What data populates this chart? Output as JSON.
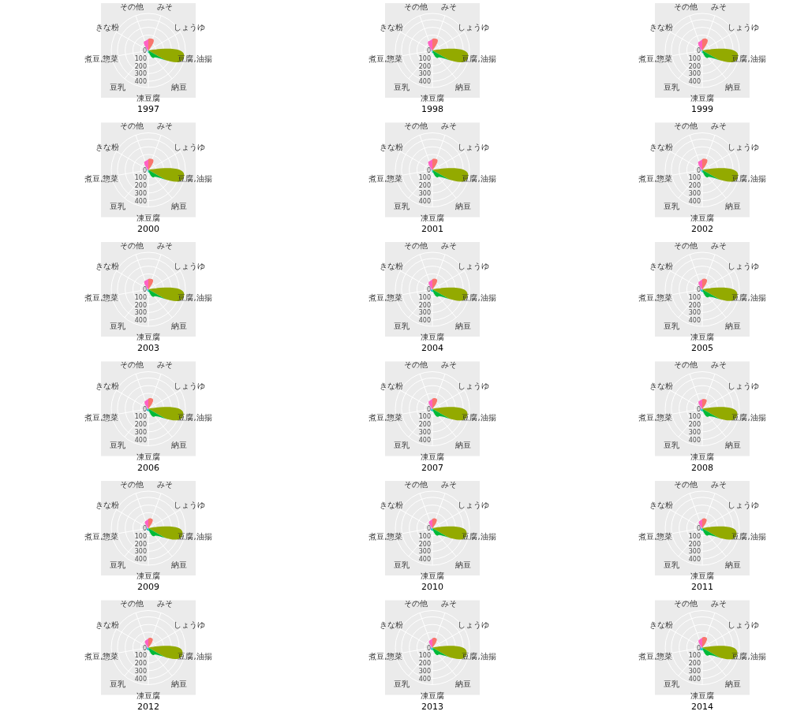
{
  "chart_data": [
    {
      "type": "radar",
      "title": "1997",
      "categories": [
        "みそ",
        "しょうゆ",
        "豆腐,油揚",
        "納豆",
        "凍豆腐",
        "豆乳",
        "煮豆,惣菜",
        "きな粉",
        "その他"
      ],
      "colors": [
        "#F8766D",
        "#D39200",
        "#93AA00",
        "#00BA38",
        "#00C19F",
        "#00B9E3",
        "#619CFF",
        "#DB72FB",
        "#FF61C3"
      ],
      "ylim": [
        0,
        480
      ],
      "yticks": [
        0,
        100,
        200,
        300,
        400
      ],
      "grid": true,
      "values": [
        160,
        10,
        470,
        120,
        30,
        10,
        20,
        20,
        130
      ]
    },
    {
      "type": "radar",
      "title": "1998",
      "categories": [
        "みそ",
        "しょうゆ",
        "豆腐,油揚",
        "納豆",
        "凍豆腐",
        "豆乳",
        "煮豆,惣菜",
        "きな粉",
        "その他"
      ],
      "colors": [
        "#F8766D",
        "#D39200",
        "#93AA00",
        "#00BA38",
        "#00C19F",
        "#00B9E3",
        "#619CFF",
        "#DB72FB",
        "#FF61C3"
      ],
      "ylim": [
        0,
        480
      ],
      "yticks": [
        0,
        100,
        200,
        300,
        400
      ],
      "grid": true,
      "values": [
        160,
        10,
        470,
        120,
        30,
        10,
        20,
        20,
        130
      ]
    },
    {
      "type": "radar",
      "title": "1999",
      "categories": [
        "みそ",
        "しょうゆ",
        "豆腐,油揚",
        "納豆",
        "凍豆腐",
        "豆乳",
        "煮豆,惣菜",
        "きな粉",
        "その他"
      ],
      "colors": [
        "#F8766D",
        "#D39200",
        "#93AA00",
        "#00BA38",
        "#00C19F",
        "#00B9E3",
        "#619CFF",
        "#DB72FB",
        "#FF61C3"
      ],
      "ylim": [
        0,
        480
      ],
      "yticks": [
        0,
        100,
        200,
        300,
        400
      ],
      "grid": true,
      "values": [
        160,
        10,
        470,
        120,
        30,
        10,
        20,
        20,
        120
      ]
    },
    {
      "type": "radar",
      "title": "2000",
      "categories": [
        "みそ",
        "しょうゆ",
        "豆腐,油揚",
        "納豆",
        "凍豆腐",
        "豆乳",
        "煮豆,惣菜",
        "きな粉",
        "その他"
      ],
      "colors": [
        "#F8766D",
        "#D39200",
        "#93AA00",
        "#00BA38",
        "#00C19F",
        "#00B9E3",
        "#619CFF",
        "#DB72FB",
        "#FF61C3"
      ],
      "ylim": [
        0,
        480
      ],
      "yticks": [
        0,
        100,
        200,
        300,
        400
      ],
      "grid": true,
      "values": [
        150,
        10,
        470,
        120,
        30,
        10,
        20,
        20,
        120
      ]
    },
    {
      "type": "radar",
      "title": "2001",
      "categories": [
        "みそ",
        "しょうゆ",
        "豆腐,油揚",
        "納豆",
        "凍豆腐",
        "豆乳",
        "煮豆,惣菜",
        "きな粉",
        "その他"
      ],
      "colors": [
        "#F8766D",
        "#D39200",
        "#93AA00",
        "#00BA38",
        "#00C19F",
        "#00B9E3",
        "#619CFF",
        "#DB72FB",
        "#FF61C3"
      ],
      "ylim": [
        0,
        480
      ],
      "yticks": [
        0,
        100,
        200,
        300,
        400
      ],
      "grid": true,
      "values": [
        150,
        10,
        470,
        120,
        30,
        10,
        20,
        20,
        120
      ]
    },
    {
      "type": "radar",
      "title": "2002",
      "categories": [
        "みそ",
        "しょうゆ",
        "豆腐,油揚",
        "納豆",
        "凍豆腐",
        "豆乳",
        "煮豆,惣菜",
        "きな粉",
        "その他"
      ],
      "colors": [
        "#F8766D",
        "#D39200",
        "#93AA00",
        "#00BA38",
        "#00C19F",
        "#00B9E3",
        "#619CFF",
        "#DB72FB",
        "#FF61C3"
      ],
      "ylim": [
        0,
        480
      ],
      "yticks": [
        0,
        100,
        200,
        300,
        400
      ],
      "grid": true,
      "values": [
        150,
        10,
        470,
        120,
        30,
        20,
        20,
        20,
        120
      ]
    },
    {
      "type": "radar",
      "title": "2003",
      "categories": [
        "みそ",
        "しょうゆ",
        "豆腐,油揚",
        "納豆",
        "凍豆腐",
        "豆乳",
        "煮豆,惣菜",
        "きな粉",
        "その他"
      ],
      "colors": [
        "#F8766D",
        "#D39200",
        "#93AA00",
        "#00BA38",
        "#00C19F",
        "#00B9E3",
        "#619CFF",
        "#DB72FB",
        "#FF61C3"
      ],
      "ylim": [
        0,
        480
      ],
      "yticks": [
        0,
        100,
        200,
        300,
        400
      ],
      "grid": true,
      "values": [
        140,
        10,
        470,
        120,
        30,
        20,
        20,
        20,
        120
      ]
    },
    {
      "type": "radar",
      "title": "2004",
      "categories": [
        "みそ",
        "しょうゆ",
        "豆腐,油揚",
        "納豆",
        "凍豆腐",
        "豆乳",
        "煮豆,惣菜",
        "きな粉",
        "その他"
      ],
      "colors": [
        "#F8766D",
        "#D39200",
        "#93AA00",
        "#00BA38",
        "#00C19F",
        "#00B9E3",
        "#619CFF",
        "#DB72FB",
        "#FF61C3"
      ],
      "ylim": [
        0,
        480
      ],
      "yticks": [
        0,
        100,
        200,
        300,
        400
      ],
      "grid": true,
      "values": [
        140,
        10,
        460,
        120,
        30,
        30,
        20,
        20,
        110
      ]
    },
    {
      "type": "radar",
      "title": "2005",
      "categories": [
        "みそ",
        "しょうゆ",
        "豆腐,油揚",
        "納豆",
        "凍豆腐",
        "豆乳",
        "煮豆,惣菜",
        "きな粉",
        "その他"
      ],
      "colors": [
        "#F8766D",
        "#D39200",
        "#93AA00",
        "#00BA38",
        "#00C19F",
        "#00B9E3",
        "#619CFF",
        "#DB72FB",
        "#FF61C3"
      ],
      "ylim": [
        0,
        480
      ],
      "yticks": [
        0,
        100,
        200,
        300,
        400
      ],
      "grid": true,
      "values": [
        140,
        10,
        460,
        130,
        30,
        30,
        20,
        20,
        110
      ]
    },
    {
      "type": "radar",
      "title": "2006",
      "categories": [
        "みそ",
        "しょうゆ",
        "豆腐,油揚",
        "納豆",
        "凍豆腐",
        "豆乳",
        "煮豆,惣菜",
        "きな粉",
        "その他"
      ],
      "colors": [
        "#F8766D",
        "#D39200",
        "#93AA00",
        "#00BA38",
        "#00C19F",
        "#00B9E3",
        "#619CFF",
        "#DB72FB",
        "#FF61C3"
      ],
      "ylim": [
        0,
        480
      ],
      "yticks": [
        0,
        100,
        200,
        300,
        400
      ],
      "grid": true,
      "values": [
        140,
        10,
        460,
        130,
        30,
        30,
        20,
        20,
        110
      ]
    },
    {
      "type": "radar",
      "title": "2007",
      "categories": [
        "みそ",
        "しょうゆ",
        "豆腐,油揚",
        "納豆",
        "凍豆腐",
        "豆乳",
        "煮豆,惣菜",
        "きな粉",
        "その他"
      ],
      "colors": [
        "#F8766D",
        "#D39200",
        "#93AA00",
        "#00BA38",
        "#00C19F",
        "#00B9E3",
        "#619CFF",
        "#DB72FB",
        "#FF61C3"
      ],
      "ylim": [
        0,
        480
      ],
      "yticks": [
        0,
        100,
        200,
        300,
        400
      ],
      "grid": true,
      "values": [
        140,
        10,
        460,
        130,
        30,
        30,
        20,
        20,
        110
      ]
    },
    {
      "type": "radar",
      "title": "2008",
      "categories": [
        "みそ",
        "しょうゆ",
        "豆腐,油揚",
        "納豆",
        "凍豆腐",
        "豆乳",
        "煮豆,惣菜",
        "きな粉",
        "その他"
      ],
      "colors": [
        "#F8766D",
        "#D39200",
        "#93AA00",
        "#00BA38",
        "#00C19F",
        "#00B9E3",
        "#619CFF",
        "#DB72FB",
        "#FF61C3"
      ],
      "ylim": [
        0,
        480
      ],
      "yticks": [
        0,
        100,
        200,
        300,
        400
      ],
      "grid": true,
      "values": [
        130,
        10,
        460,
        130,
        30,
        30,
        20,
        20,
        110
      ]
    },
    {
      "type": "radar",
      "title": "2009",
      "categories": [
        "みそ",
        "しょうゆ",
        "豆腐,油揚",
        "納豆",
        "凍豆腐",
        "豆乳",
        "煮豆,惣菜",
        "きな粉",
        "その他"
      ],
      "colors": [
        "#F8766D",
        "#D39200",
        "#93AA00",
        "#00BA38",
        "#00C19F",
        "#00B9E3",
        "#619CFF",
        "#DB72FB",
        "#FF61C3"
      ],
      "ylim": [
        0,
        480
      ],
      "yticks": [
        0,
        100,
        200,
        300,
        400
      ],
      "grid": true,
      "values": [
        130,
        10,
        450,
        130,
        30,
        30,
        20,
        20,
        100
      ]
    },
    {
      "type": "radar",
      "title": "2010",
      "categories": [
        "みそ",
        "しょうゆ",
        "豆腐,油揚",
        "納豆",
        "凍豆腐",
        "豆乳",
        "煮豆,惣菜",
        "きな粉",
        "その他"
      ],
      "colors": [
        "#F8766D",
        "#D39200",
        "#93AA00",
        "#00BA38",
        "#00C19F",
        "#00B9E3",
        "#619CFF",
        "#DB72FB",
        "#FF61C3"
      ],
      "ylim": [
        0,
        480
      ],
      "yticks": [
        0,
        100,
        200,
        300,
        400
      ],
      "grid": true,
      "values": [
        130,
        10,
        450,
        120,
        30,
        30,
        20,
        20,
        100
      ]
    },
    {
      "type": "radar",
      "title": "2011",
      "categories": [
        "みそ",
        "しょうゆ",
        "豆腐,油揚",
        "納豆",
        "凍豆腐",
        "豆乳",
        "煮豆,惣菜",
        "きな粉",
        "その他"
      ],
      "colors": [
        "#F8766D",
        "#D39200",
        "#93AA00",
        "#00BA38",
        "#00C19F",
        "#00B9E3",
        "#619CFF",
        "#DB72FB",
        "#FF61C3"
      ],
      "ylim": [
        0,
        480
      ],
      "yticks": [
        0,
        100,
        200,
        300,
        400
      ],
      "grid": true,
      "values": [
        130,
        10,
        450,
        120,
        30,
        30,
        20,
        20,
        100
      ]
    },
    {
      "type": "radar",
      "title": "2012",
      "categories": [
        "みそ",
        "しょうゆ",
        "豆腐,油揚",
        "納豆",
        "凍豆腐",
        "豆乳",
        "煮豆,惣菜",
        "きな粉",
        "その他"
      ],
      "colors": [
        "#F8766D",
        "#D39200",
        "#93AA00",
        "#00BA38",
        "#00C19F",
        "#00B9E3",
        "#619CFF",
        "#DB72FB",
        "#FF61C3"
      ],
      "ylim": [
        0,
        480
      ],
      "yticks": [
        0,
        100,
        200,
        300,
        400
      ],
      "grid": true,
      "values": [
        130,
        10,
        450,
        120,
        30,
        30,
        20,
        20,
        100
      ]
    },
    {
      "type": "radar",
      "title": "2013",
      "categories": [
        "みそ",
        "しょうゆ",
        "豆腐,油揚",
        "納豆",
        "凍豆腐",
        "豆乳",
        "煮豆,惣菜",
        "きな粉",
        "その他"
      ],
      "colors": [
        "#F8766D",
        "#D39200",
        "#93AA00",
        "#00BA38",
        "#00C19F",
        "#00B9E3",
        "#619CFF",
        "#DB72FB",
        "#FF61C3"
      ],
      "ylim": [
        0,
        480
      ],
      "yticks": [
        0,
        100,
        200,
        300,
        400
      ],
      "grid": true,
      "values": [
        130,
        10,
        450,
        120,
        30,
        30,
        20,
        20,
        100
      ]
    },
    {
      "type": "radar",
      "title": "2014",
      "categories": [
        "みそ",
        "しょうゆ",
        "豆腐,油揚",
        "納豆",
        "凍豆腐",
        "豆乳",
        "煮豆,惣菜",
        "きな粉",
        "その他"
      ],
      "colors": [
        "#F8766D",
        "#D39200",
        "#93AA00",
        "#00BA38",
        "#00C19F",
        "#00B9E3",
        "#619CFF",
        "#DB72FB",
        "#FF61C3"
      ],
      "ylim": [
        0,
        480
      ],
      "yticks": [
        0,
        100,
        200,
        300,
        400
      ],
      "grid": true,
      "values": [
        140,
        10,
        460,
        130,
        30,
        40,
        20,
        20,
        110
      ]
    }
  ]
}
